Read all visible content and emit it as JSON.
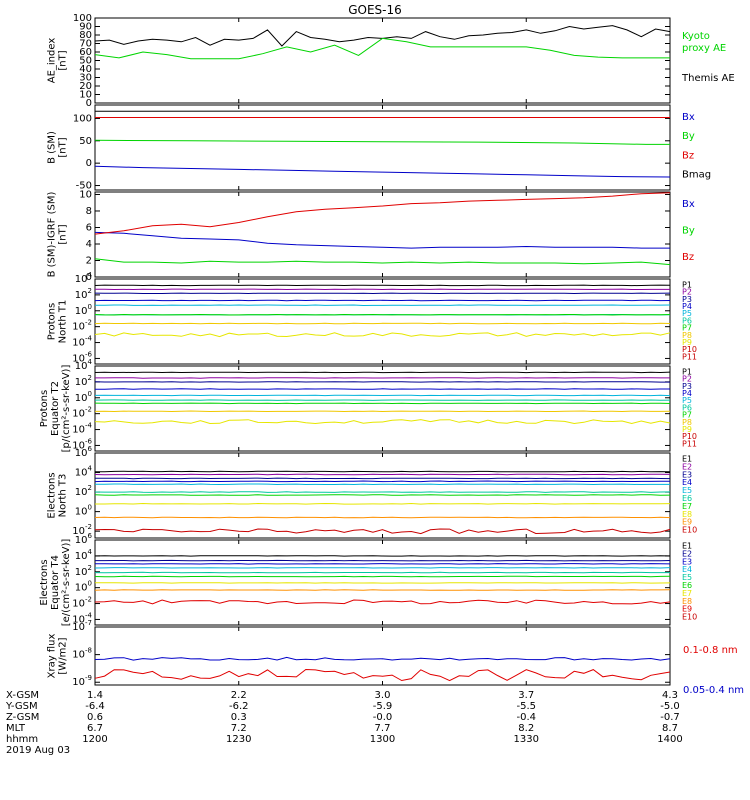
{
  "title": "GOES-16",
  "colors": {
    "black": "#000000",
    "blue": "#0000c8",
    "green": "#00d400",
    "red": "#e00000",
    "navy": "#000090",
    "purple": "#8c00a0",
    "cyan": "#00b4dc",
    "teal": "#00c8a0",
    "yellow": "#e6e600",
    "gold": "#f0c800",
    "orange": "#ff9000",
    "crimson": "#c80000"
  },
  "chart_data": [
    {
      "type": "line",
      "panel": "ae",
      "ylabel": [
        "AE_index",
        "[nT]"
      ],
      "ylim": [
        0,
        100
      ],
      "yscale": "linear",
      "yticks": [
        "0",
        "10",
        "20",
        "30",
        "40",
        "50",
        "60",
        "70",
        "80",
        "90",
        "100"
      ],
      "legend": [
        "Kyoto",
        "proxy AE",
        "Themis AE"
      ],
      "series": [
        {
          "name": "Themis AE",
          "color": "black",
          "x": [
            0,
            3,
            6,
            9,
            12,
            15,
            18,
            21,
            24,
            27,
            30,
            33,
            36,
            39,
            42,
            45,
            48,
            51,
            54,
            57,
            60,
            63,
            66,
            69,
            72,
            75,
            78,
            81,
            84,
            87,
            90,
            93,
            96,
            99,
            102,
            105,
            108,
            111,
            114,
            117,
            120
          ],
          "y": [
            73,
            74,
            69,
            73,
            75,
            74,
            72,
            77,
            68,
            75,
            74,
            76,
            86,
            67,
            84,
            77,
            75,
            72,
            74,
            77,
            76,
            78,
            76,
            84,
            78,
            75,
            79,
            80,
            82,
            83,
            86,
            82,
            85,
            90,
            87,
            89,
            91,
            86,
            78,
            87,
            84
          ]
        },
        {
          "name": "Kyoto proxy AE",
          "color": "green",
          "x": [
            0,
            5,
            10,
            15,
            20,
            25,
            30,
            35,
            40,
            45,
            50,
            55,
            60,
            65,
            70,
            75,
            80,
            85,
            90,
            95,
            100,
            105,
            110,
            115,
            120
          ],
          "y": [
            57,
            53,
            60,
            57,
            52,
            52,
            52,
            58,
            66,
            60,
            68,
            56,
            76,
            72,
            66,
            66,
            66,
            66,
            66,
            62,
            56,
            54,
            53,
            53,
            53
          ]
        }
      ]
    },
    {
      "type": "line",
      "panel": "bsm",
      "ylabel": [
        "B (SM)",
        "[nT]"
      ],
      "ylim": [
        -60,
        130
      ],
      "yscale": "linear",
      "yticks": [
        "-50",
        "0",
        "50",
        "100"
      ],
      "legend": [
        "Bx",
        "By",
        "Bz",
        "Bmag"
      ],
      "series": [
        {
          "name": "Bx",
          "color": "blue",
          "x": [
            0,
            10,
            20,
            30,
            40,
            50,
            60,
            70,
            80,
            90,
            100,
            110,
            120
          ],
          "y": [
            -7,
            -10,
            -12,
            -14,
            -16,
            -18,
            -20,
            -22,
            -24,
            -26,
            -28,
            -30,
            -31
          ]
        },
        {
          "name": "By",
          "color": "green",
          "x": [
            0,
            20,
            40,
            60,
            80,
            100,
            115,
            120
          ],
          "y": [
            51,
            50,
            49,
            48,
            47,
            45,
            42,
            42
          ]
        },
        {
          "name": "Bz",
          "color": "red",
          "x": [
            0,
            120
          ],
          "y": [
            102,
            102
          ]
        },
        {
          "name": "Bmag",
          "color": "black",
          "x": [
            0,
            120
          ],
          "y": [
            116,
            117
          ]
        }
      ]
    },
    {
      "type": "line",
      "panel": "bigrf",
      "ylabel": [
        "B (SM)-IGRF (SM)",
        "[nT]"
      ],
      "ylim": [
        0,
        10.3
      ],
      "yscale": "linear",
      "yticks": [
        "0",
        "2",
        "4",
        "6",
        "8",
        "10"
      ],
      "legend": [
        "Bx",
        "By",
        "Bz"
      ],
      "series": [
        {
          "name": "Bx",
          "color": "blue",
          "x": [
            0,
            6,
            12,
            18,
            24,
            30,
            36,
            42,
            48,
            54,
            60,
            66,
            72,
            78,
            84,
            90,
            96,
            102,
            108,
            114,
            120
          ],
          "y": [
            5.4,
            5.3,
            5.0,
            4.7,
            4.6,
            4.5,
            4.1,
            3.9,
            3.8,
            3.7,
            3.6,
            3.5,
            3.6,
            3.6,
            3.6,
            3.7,
            3.6,
            3.6,
            3.6,
            3.5,
            3.5
          ]
        },
        {
          "name": "By",
          "color": "green",
          "x": [
            0,
            6,
            12,
            18,
            24,
            30,
            36,
            42,
            48,
            54,
            60,
            66,
            72,
            78,
            84,
            90,
            96,
            102,
            108,
            114,
            120
          ],
          "y": [
            2.2,
            1.8,
            1.8,
            1.7,
            1.9,
            1.8,
            1.8,
            1.9,
            1.8,
            1.8,
            1.7,
            1.8,
            1.7,
            1.8,
            1.7,
            1.7,
            1.7,
            1.6,
            1.7,
            1.8,
            1.5
          ]
        },
        {
          "name": "Bz",
          "color": "red",
          "x": [
            0,
            6,
            12,
            18,
            24,
            30,
            36,
            42,
            48,
            54,
            60,
            66,
            72,
            78,
            84,
            90,
            96,
            102,
            108,
            114,
            120
          ],
          "y": [
            5.2,
            5.6,
            6.2,
            6.4,
            6.1,
            6.6,
            7.3,
            7.9,
            8.2,
            8.4,
            8.6,
            8.9,
            9.0,
            9.2,
            9.3,
            9.4,
            9.5,
            9.6,
            9.8,
            10.1,
            10.2
          ]
        }
      ]
    },
    {
      "type": "line",
      "panel": "protons-north",
      "ylabel": [
        "Protons",
        "North T1"
      ],
      "ylim": [
        -6.7,
        4
      ],
      "yscale": "log",
      "yticks": [
        "10^4",
        "10^2",
        "10^0",
        "10^-2",
        "10^-4",
        "10^-6"
      ],
      "legend": [
        "P1",
        "P2",
        "P3",
        "P4",
        "P5",
        "P6",
        "P7",
        "P8",
        "P9",
        "P10",
        "P11"
      ],
      "series": [
        {
          "name": "P1",
          "color": "black",
          "log": 3.2
        },
        {
          "name": "P2",
          "color": "purple",
          "log": 2.7
        },
        {
          "name": "P3",
          "color": "navy",
          "log": 2.2
        },
        {
          "name": "P4",
          "color": "blue",
          "log": 1.3
        },
        {
          "name": "P5",
          "color": "cyan",
          "log": 0.7
        },
        {
          "name": "P6",
          "color": "teal",
          "log": -0.5
        },
        {
          "name": "P7",
          "color": "green",
          "log": -0.5
        },
        {
          "name": "P8",
          "color": "gold",
          "log": -1.6
        },
        {
          "name": "P9",
          "color": "yellow",
          "log": -3.0,
          "wavy": true
        }
      ]
    },
    {
      "type": "line",
      "panel": "protons-equator",
      "ylabel": [
        "Protons",
        "Equator T2",
        "[p/(cm²-s-sr-keV)]"
      ],
      "ylim": [
        -6.7,
        4
      ],
      "yscale": "log",
      "yticks": [
        "10^4",
        "10^2",
        "10^0",
        "10^-2",
        "10^-4",
        "10^-6"
      ],
      "legend": [
        "P1",
        "P2",
        "P3",
        "P4",
        "P5",
        "P6",
        "P7",
        "P8",
        "P9",
        "P10",
        "P11"
      ],
      "series": [
        {
          "name": "P1",
          "color": "black",
          "log": 3.2
        },
        {
          "name": "P2",
          "color": "purple",
          "log": 2.5
        },
        {
          "name": "P3",
          "color": "navy",
          "log": 2.0
        },
        {
          "name": "P4",
          "color": "blue",
          "log": 1.1
        },
        {
          "name": "P5",
          "color": "cyan",
          "log": 0.3
        },
        {
          "name": "P6",
          "color": "teal",
          "log": -0.3
        },
        {
          "name": "P7",
          "color": "green",
          "log": -0.7
        },
        {
          "name": "P8",
          "color": "gold",
          "log": -1.7
        },
        {
          "name": "P9",
          "color": "yellow",
          "log": -3.0,
          "wavy": true
        }
      ]
    },
    {
      "type": "line",
      "panel": "electrons-north",
      "ylabel": [
        "Electrons",
        "North T3"
      ],
      "ylim": [
        -2.7,
        6
      ],
      "yscale": "log",
      "yticks": [
        "10^6",
        "10^4",
        "10^2",
        "10^0",
        "10^-2"
      ],
      "legend": [
        "E1",
        "E2",
        "E3",
        "E4",
        "E5",
        "E6",
        "E7",
        "E8",
        "E9",
        "E10"
      ],
      "series": [
        {
          "name": "E1",
          "color": "black",
          "log": 4.1
        },
        {
          "name": "E2",
          "color": "purple",
          "log": 3.8
        },
        {
          "name": "E3",
          "color": "navy",
          "log": 3.4
        },
        {
          "name": "E4",
          "color": "blue",
          "log": 3.1
        },
        {
          "name": "E5",
          "color": "cyan",
          "log": 2.8
        },
        {
          "name": "E6",
          "color": "teal",
          "log": 2.0
        },
        {
          "name": "E7",
          "color": "green",
          "log": 1.7
        },
        {
          "name": "E8",
          "color": "yellow",
          "log": 0.8
        },
        {
          "name": "E9",
          "color": "orange",
          "log": -0.6
        },
        {
          "name": "E10",
          "color": "crimson",
          "log": -2.0,
          "wavy": true
        }
      ]
    },
    {
      "type": "line",
      "panel": "electrons-equator",
      "ylabel": [
        "Electrons",
        "Equator T4",
        "[e/(cm²-s-sr-keV)]"
      ],
      "ylim": [
        -4.7,
        6
      ],
      "yscale": "log",
      "yticks": [
        "10^6",
        "10^4",
        "10^2",
        "10^0",
        "10^-2",
        "10^-4"
      ],
      "legend": [
        "E1",
        "E2",
        "E3",
        "E4",
        "E5",
        "E6",
        "E7",
        "E8",
        "E9",
        "E10"
      ],
      "series": [
        {
          "name": "E1",
          "color": "black",
          "log": 4.0
        },
        {
          "name": "E2",
          "color": "navy",
          "log": 3.4
        },
        {
          "name": "E3",
          "color": "blue",
          "log": 3.0
        },
        {
          "name": "E4",
          "color": "cyan",
          "log": 2.5
        },
        {
          "name": "E5",
          "color": "teal",
          "log": 1.9
        },
        {
          "name": "E6",
          "color": "green",
          "log": 1.4
        },
        {
          "name": "E7",
          "color": "yellow",
          "log": 0.6
        },
        {
          "name": "E8",
          "color": "orange",
          "log": -0.3
        },
        {
          "name": "E9",
          "color": "red",
          "log": -1.8,
          "wavy": true
        }
      ]
    },
    {
      "type": "line",
      "panel": "xray",
      "ylabel": [
        "Xray flux",
        "[W/m2]"
      ],
      "ylim": [
        -9.1,
        -7
      ],
      "yscale": "log",
      "yticks": [
        "10^-7",
        "10^-8",
        "10^-9"
      ],
      "legend": [
        "0.1-0.8 nm",
        "0.05-0.4 nm"
      ],
      "series": [
        {
          "name": "0.05-0.4 nm",
          "color": "blue",
          "log": -8.15,
          "jitter": 0.05
        },
        {
          "name": "0.1-0.8 nm",
          "color": "red",
          "log": -8.9,
          "jitter": 0.2
        }
      ]
    }
  ],
  "xaxis": {
    "minutes_range": [
      0,
      120
    ],
    "tick_minutes": [
      0,
      30,
      60,
      90,
      120
    ],
    "rows": [
      {
        "label": "X-GSM",
        "values": [
          "1.4",
          "2.2",
          "3.0",
          "3.7",
          "4.3"
        ]
      },
      {
        "label": "Y-GSM",
        "values": [
          "-6.4",
          "-6.2",
          "-5.9",
          "-5.5",
          "-5.0"
        ]
      },
      {
        "label": "Z-GSM",
        "values": [
          "0.6",
          "0.3",
          "-0.0",
          "-0.4",
          "-0.7"
        ]
      },
      {
        "label": "MLT",
        "values": [
          "6.7",
          "7.2",
          "7.7",
          "8.2",
          "8.7"
        ]
      },
      {
        "label": "hhmm",
        "values": [
          "1200",
          "1230",
          "1300",
          "1330",
          "1400"
        ]
      }
    ],
    "date": "2019 Aug 03"
  }
}
